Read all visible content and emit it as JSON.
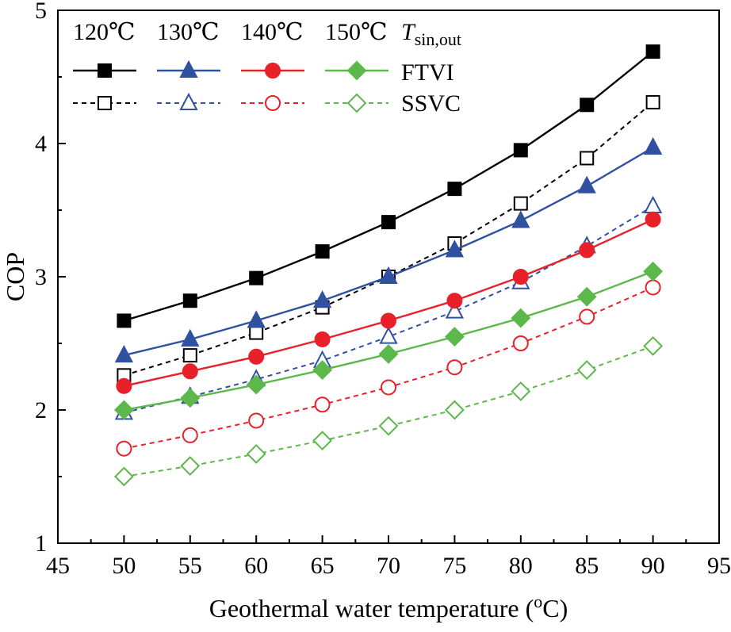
{
  "chart_data": {
    "type": "line",
    "title": "",
    "xlabel": "Geothermal water temperature (oC)",
    "xlabel_parts": {
      "main": "Geothermal water temperature (",
      "sup": "o",
      "end": "C)"
    },
    "ylabel": "COP",
    "xlim": [
      45,
      95
    ],
    "ylim": [
      1,
      5
    ],
    "xticks": [
      45,
      50,
      55,
      60,
      65,
      70,
      75,
      80,
      85,
      90,
      95
    ],
    "yticks": [
      1,
      2,
      3,
      4,
      5
    ],
    "x": [
      50,
      55,
      60,
      65,
      70,
      75,
      80,
      85,
      90
    ],
    "legend": {
      "placement": "top-left",
      "column_headers": [
        "120℃",
        "130℃",
        "140℃",
        "150℃"
      ],
      "variable_label": {
        "main": "T",
        "sub": "sin,out"
      },
      "row_labels": [
        "FTVI",
        "SSVC"
      ]
    },
    "series": [
      {
        "name": "FTVI 120℃",
        "color": "#000000",
        "marker": "square",
        "filled": true,
        "dashed": false,
        "values": [
          2.67,
          2.82,
          2.99,
          3.19,
          3.41,
          3.66,
          3.95,
          4.29,
          4.69
        ]
      },
      {
        "name": "FTVI 130℃",
        "color": "#3050A0",
        "marker": "triangle",
        "filled": true,
        "dashed": false,
        "values": [
          2.41,
          2.53,
          2.67,
          2.82,
          3.0,
          3.2,
          3.42,
          3.68,
          3.97
        ]
      },
      {
        "name": "FTVI 140℃",
        "color": "#E8202A",
        "marker": "circle",
        "filled": true,
        "dashed": false,
        "values": [
          2.18,
          2.29,
          2.4,
          2.53,
          2.67,
          2.82,
          3.0,
          3.2,
          3.43
        ]
      },
      {
        "name": "FTVI 150℃",
        "color": "#5CB84A",
        "marker": "diamond",
        "filled": true,
        "dashed": false,
        "values": [
          2.0,
          2.09,
          2.19,
          2.3,
          2.42,
          2.55,
          2.69,
          2.85,
          3.04
        ]
      },
      {
        "name": "SSVC 120℃",
        "color": "#000000",
        "marker": "square",
        "filled": false,
        "dashed": true,
        "values": [
          2.26,
          2.41,
          2.58,
          2.77,
          3.0,
          3.25,
          3.55,
          3.89,
          4.31
        ]
      },
      {
        "name": "SSVC 130℃",
        "color": "#3050A0",
        "marker": "triangle",
        "filled": false,
        "dashed": true,
        "values": [
          1.98,
          2.1,
          2.23,
          2.37,
          2.55,
          2.74,
          2.96,
          3.23,
          3.53
        ]
      },
      {
        "name": "SSVC 140℃",
        "color": "#E8202A",
        "marker": "circle",
        "filled": false,
        "dashed": true,
        "values": [
          1.71,
          1.81,
          1.92,
          2.04,
          2.17,
          2.32,
          2.5,
          2.7,
          2.92
        ]
      },
      {
        "name": "SSVC 150℃",
        "color": "#5CB84A",
        "marker": "diamond",
        "filled": false,
        "dashed": true,
        "values": [
          1.5,
          1.58,
          1.67,
          1.77,
          1.88,
          2.0,
          2.14,
          2.3,
          2.48
        ]
      }
    ]
  }
}
